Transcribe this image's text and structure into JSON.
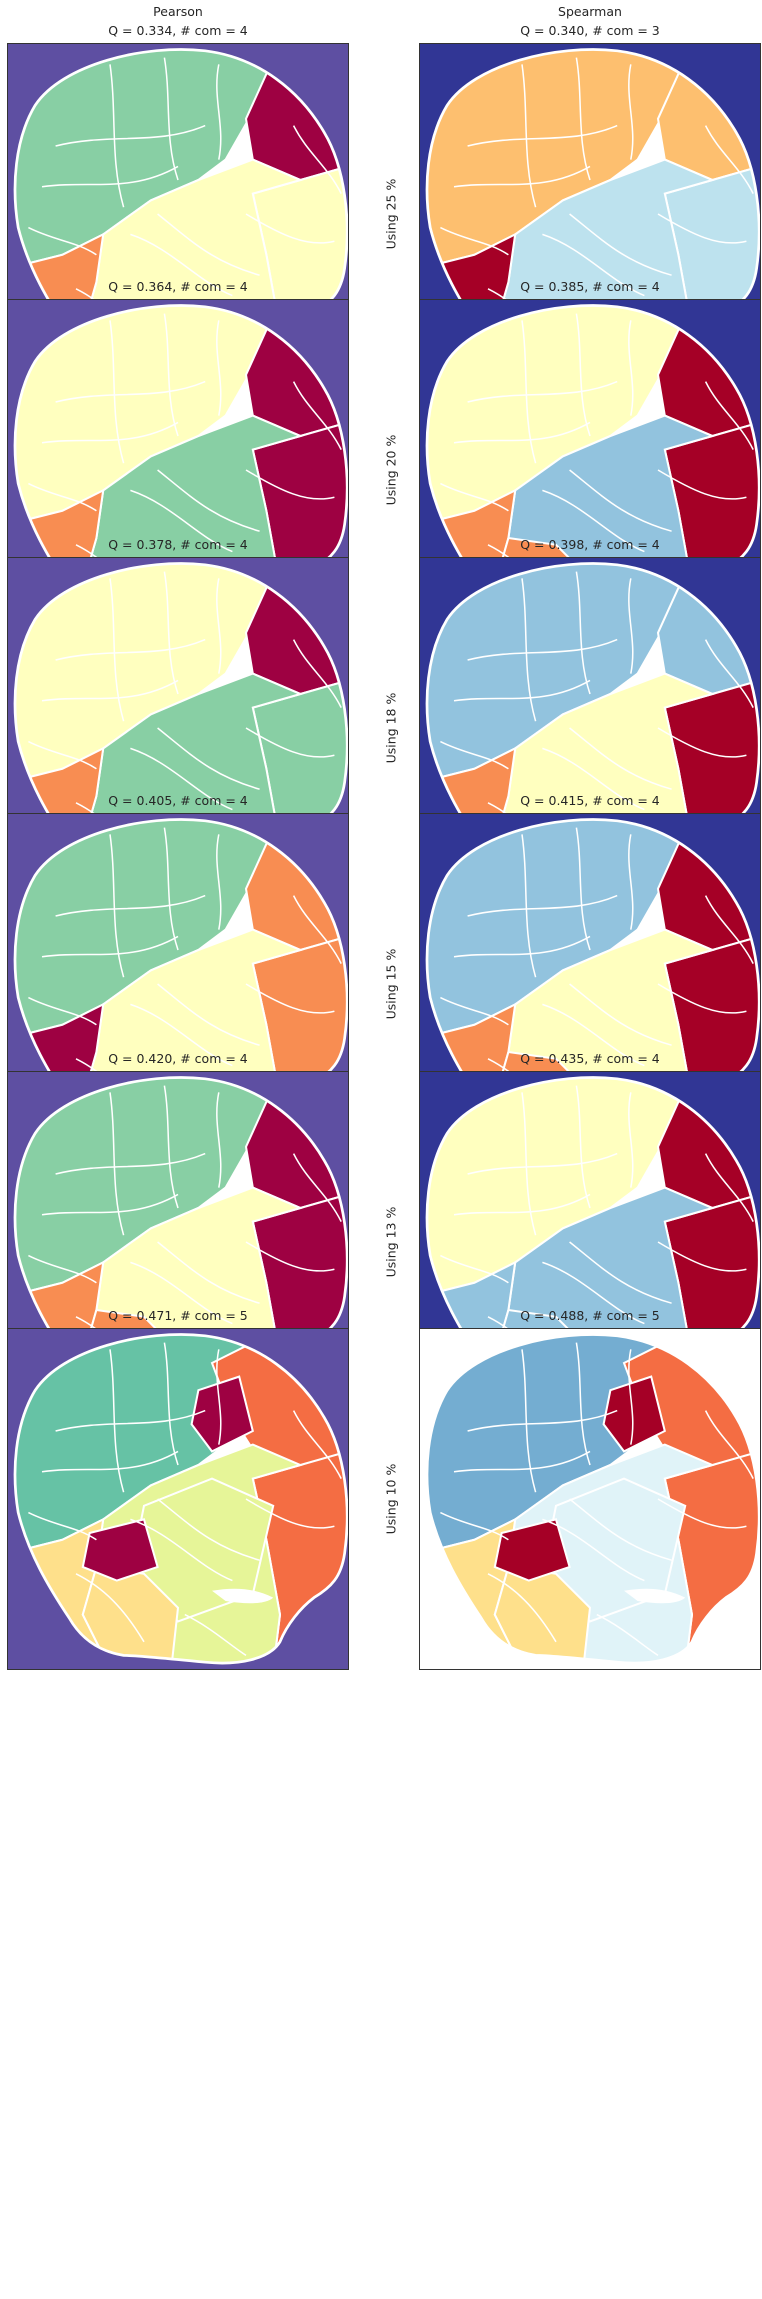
{
  "columns": {
    "left": "Pearson",
    "right": "Spearman"
  },
  "colors": {
    "purple_bg": "#5e4fa2",
    "navy_bg": "#313695",
    "green": "#88cfa4",
    "teal": "#66c2a5",
    "yellow": "#ffffbf",
    "lightyellow": "#e6f598",
    "peach": "#fee08b",
    "orange": "#f88d52",
    "darkorange": "#f46d43",
    "crimson": "#9e0142",
    "red": "#a50026",
    "lightblue": "#bde2ee",
    "blue": "#92c3de",
    "midblue": "#74add1",
    "paleblue": "#e0f3f8",
    "sand": "#fdbf6f",
    "white": "#ffffff"
  },
  "rows": [
    {
      "label": "Using 25 %",
      "pearson": "Q = 0.334,  # com = 4",
      "spearman": "Q = 0.340,  # com = 3"
    },
    {
      "label": "Using 20 %",
      "pearson": "Q = 0.364,  # com = 4",
      "spearman": "Q = 0.385,  # com = 4"
    },
    {
      "label": "Using 18 %",
      "pearson": "Q = 0.378,  # com = 4",
      "spearman": "Q = 0.398,  # com = 4"
    },
    {
      "label": "Using 15 %",
      "pearson": "Q = 0.405,  # com = 4",
      "spearman": "Q = 0.415,  # com = 4"
    },
    {
      "label": "Using 13 %",
      "pearson": "Q = 0.420,  # com = 4",
      "spearman": "Q = 0.435,  # com = 4"
    },
    {
      "label": "Using 10 %",
      "pearson": "Q = 0.471,  # com = 5",
      "spearman": "Q = 0.488,  # com = 5"
    }
  ]
}
